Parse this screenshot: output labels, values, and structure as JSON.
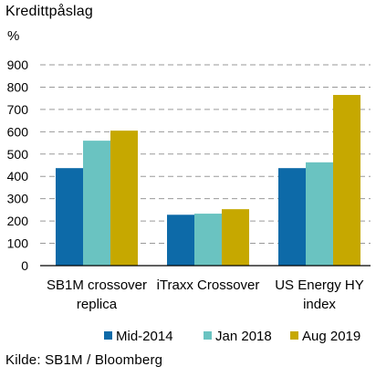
{
  "header": {
    "title": "Kredittpåslag",
    "unit": "%"
  },
  "footer": {
    "source": "Kilde: SB1M / Bloomberg"
  },
  "colors": {
    "mid_2014": "#0d6aa8",
    "jan_2018": "#6ac3c1",
    "aug_2019": "#c6a800",
    "grid": "#9a9a9a",
    "axis": "#000000"
  },
  "chart_data": {
    "type": "bar",
    "title": "Kredittpåslag",
    "ylabel": "%",
    "xlabel": "",
    "ylim": [
      0,
      900
    ],
    "yticks": [
      0,
      100,
      200,
      300,
      400,
      500,
      600,
      700,
      800,
      900
    ],
    "grid": true,
    "legend_position": "bottom",
    "categories": [
      [
        "SB1M crossover",
        "replica"
      ],
      [
        "iTraxx Crossover"
      ],
      [
        "US Energy HY",
        "index"
      ]
    ],
    "series": [
      {
        "name": "Mid-2014",
        "color": "#0d6aa8",
        "values": [
          437,
          228,
          437
        ]
      },
      {
        "name": "Jan 2018",
        "color": "#6ac3c1",
        "values": [
          560,
          233,
          463
        ]
      },
      {
        "name": "Aug 2019",
        "color": "#c6a800",
        "values": [
          605,
          253,
          765
        ]
      }
    ]
  }
}
